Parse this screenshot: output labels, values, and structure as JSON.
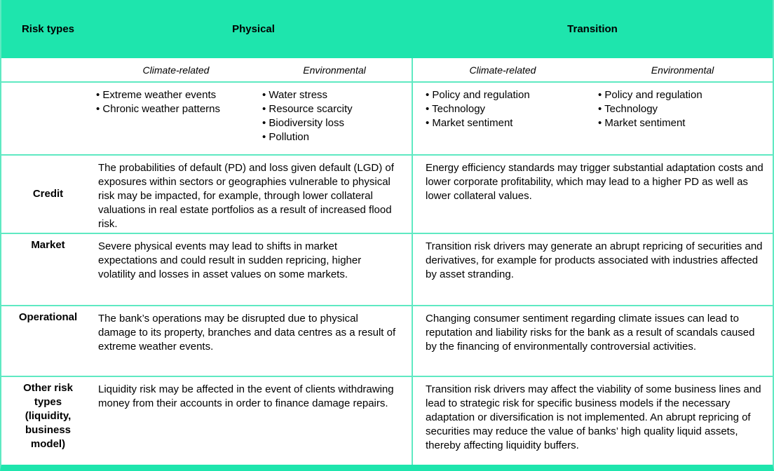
{
  "figure": {
    "header": {
      "risk_types": "Risk types",
      "physical": "Physical",
      "transition": "Transition"
    },
    "subheaders": {
      "physical_climate": "Climate-related",
      "physical_environmental": "Environmental",
      "transition_climate": "Climate-related",
      "transition_environmental": "Environmental"
    },
    "drivers": {
      "physical_climate": [
        "Extreme weather events",
        "Chronic weather patterns"
      ],
      "physical_environmental": [
        "Water stress",
        "Resource scarcity",
        "Biodiversity loss",
        "Pollution"
      ],
      "transition_climate": [
        "Policy and regulation",
        "Technology",
        "Market sentiment"
      ],
      "transition_environmental": [
        "Policy and regulation",
        "Technology",
        "Market sentiment"
      ]
    },
    "rows": [
      {
        "label": "Credit",
        "physical": "The probabilities of default (PD) and loss given default (LGD) of exposures within sectors or geographies vulnerable to physical risk may be impacted, for example, through lower collateral valuations in real estate portfolios as a result of increased flood risk.",
        "transition": "Energy efficiency standards may trigger substantial adaptation costs and lower corporate profitability, which may lead to a higher PD as well as lower collateral values."
      },
      {
        "label": "Market",
        "physical": "Severe physical events may lead to shifts in market expectations and could result in sudden repricing, higher volatility and losses in asset values on some markets.",
        "transition": "Transition risk drivers may generate an abrupt repricing of securities and derivatives, for example for products associated with industries affected by asset stranding."
      },
      {
        "label": "Operational",
        "physical": "The bank’s operations may be disrupted due to physical damage to its property, branches and data centres as a result of extreme weather events.",
        "transition": "Changing consumer sentiment regarding climate issues can lead to reputation and liability risks for the bank as a result of scandals caused by the financing of environmentally controversial activities."
      },
      {
        "label": "Other risk types (liquidity, business model)",
        "physical": "Liquidity risk may be affected in the event of clients withdrawing money from their accounts in order to finance damage repairs.",
        "transition": "Transition risk drivers may affect the viability of some business lines and lead to strategic risk for specific business models if the necessary adaptation or diversification is not implemented. An abrupt repricing of securities may reduce the value of banks’ high quality liquid assets, thereby affecting liquidity buffers."
      }
    ]
  },
  "colors": {
    "header_bg": "#1ee5ad",
    "line": "#5fe9c2",
    "text": "#000000"
  }
}
